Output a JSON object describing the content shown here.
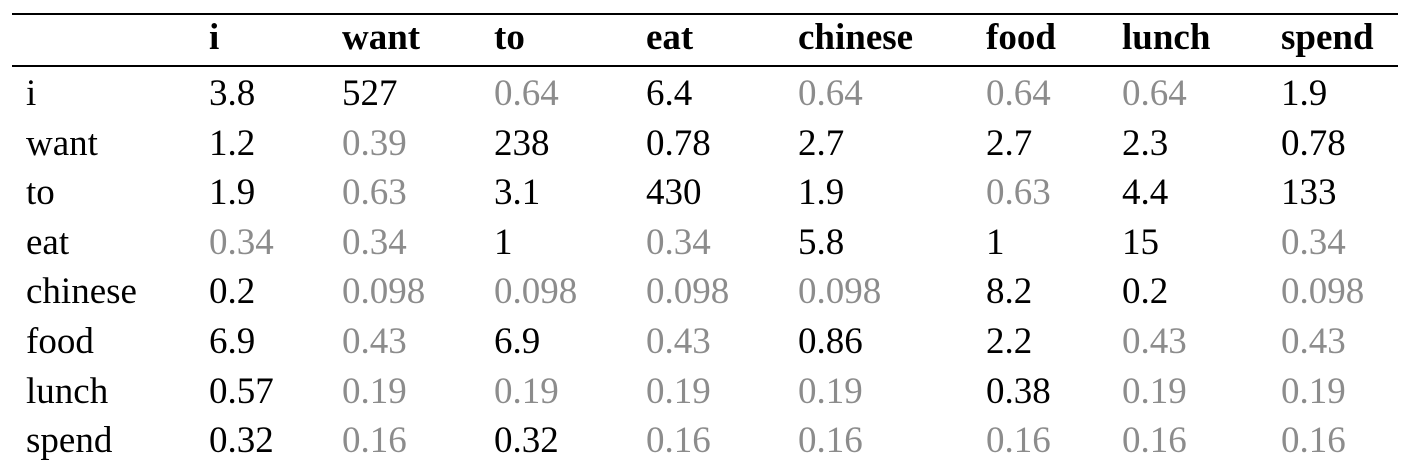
{
  "table": {
    "header": [
      "i",
      "want",
      "to",
      "eat",
      "chinese",
      "food",
      "lunch",
      "spend"
    ],
    "rows": [
      {
        "label": "i",
        "values": [
          3.8,
          527,
          0.64,
          6.4,
          0.64,
          0.64,
          0.64,
          1.9
        ]
      },
      {
        "label": "want",
        "values": [
          1.2,
          0.39,
          238,
          0.78,
          2.7,
          2.7,
          2.3,
          0.78
        ]
      },
      {
        "label": "to",
        "values": [
          1.9,
          0.63,
          3.1,
          430,
          1.9,
          0.63,
          4.4,
          133
        ]
      },
      {
        "label": "eat",
        "values": [
          0.34,
          0.34,
          1,
          0.34,
          5.8,
          1,
          15,
          0.34
        ]
      },
      {
        "label": "chinese",
        "values": [
          0.2,
          0.098,
          0.098,
          0.098,
          0.098,
          8.2,
          0.2,
          0.098
        ]
      },
      {
        "label": "food",
        "values": [
          6.9,
          0.43,
          6.9,
          0.43,
          0.86,
          2.2,
          0.43,
          0.43
        ]
      },
      {
        "label": "lunch",
        "values": [
          0.57,
          0.19,
          0.19,
          0.19,
          0.19,
          0.38,
          0.19,
          0.19
        ]
      },
      {
        "label": "spend",
        "values": [
          0.32,
          0.16,
          0.32,
          0.16,
          0.16,
          0.16,
          0.16,
          0.16
        ]
      }
    ],
    "text_color": "#000000",
    "muted_color": "#8c8c8c"
  }
}
